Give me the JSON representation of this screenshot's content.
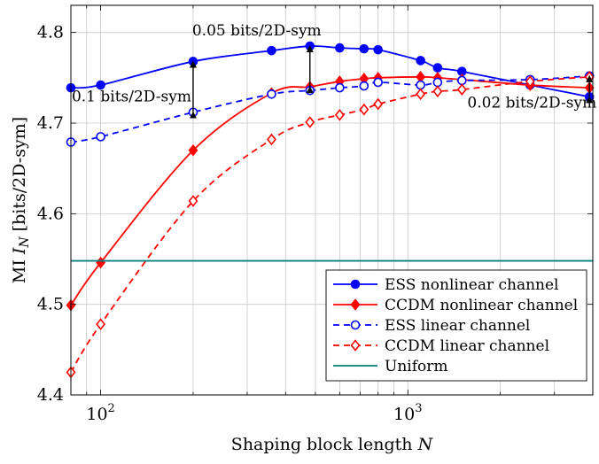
{
  "chart_data": {
    "type": "line",
    "xlabel": "Shaping block length N",
    "ylabel": "MI I_N [bits/2D-sym]",
    "xscale": "log",
    "xlim": [
      80,
      4000
    ],
    "ylim": [
      4.4,
      4.83
    ],
    "grid": true,
    "legend_position": "bottom-right",
    "x_ticks": [
      {
        "value": 100,
        "mantissa": "10",
        "exponent": "2"
      },
      {
        "value": 1000,
        "mantissa": "10",
        "exponent": "3"
      }
    ],
    "y_ticks": [
      "4.4",
      "4.5",
      "4.6",
      "4.7",
      "4.8"
    ],
    "series": [
      {
        "name": "ESS nonlinear channel",
        "color": "#0000ff",
        "dash": "solid",
        "marker": "circle",
        "filled": true,
        "points": [
          [
            80,
            4.739
          ],
          [
            100,
            4.742
          ],
          [
            200,
            4.768
          ],
          [
            360,
            4.78
          ],
          [
            480,
            4.785
          ],
          [
            600,
            4.783
          ],
          [
            720,
            4.782
          ],
          [
            800,
            4.781
          ],
          [
            1100,
            4.769
          ],
          [
            1250,
            4.761
          ],
          [
            1500,
            4.757
          ],
          [
            2500,
            4.742
          ],
          [
            3900,
            4.729
          ]
        ]
      },
      {
        "name": "CCDM nonlinear channel",
        "color": "#ff0000",
        "dash": "solid",
        "marker": "diamond",
        "filled": true,
        "points": [
          [
            80,
            4.499
          ],
          [
            100,
            4.546
          ],
          [
            200,
            4.67
          ],
          [
            360,
            4.733
          ],
          [
            480,
            4.74
          ],
          [
            600,
            4.746
          ],
          [
            720,
            4.749
          ],
          [
            800,
            4.75
          ],
          [
            1100,
            4.751
          ],
          [
            1250,
            4.75
          ],
          [
            1500,
            4.748
          ],
          [
            2500,
            4.742
          ],
          [
            3900,
            4.739
          ]
        ]
      },
      {
        "name": "ESS linear channel",
        "color": "#0000ff",
        "dash": "dashed",
        "marker": "circle",
        "filled": false,
        "points": [
          [
            80,
            4.679
          ],
          [
            100,
            4.685
          ],
          [
            200,
            4.712
          ],
          [
            360,
            4.732
          ],
          [
            480,
            4.736
          ],
          [
            600,
            4.739
          ],
          [
            720,
            4.741
          ],
          [
            800,
            4.745
          ],
          [
            1100,
            4.742
          ],
          [
            1250,
            4.745
          ],
          [
            1500,
            4.747
          ],
          [
            2500,
            4.748
          ],
          [
            3900,
            4.752
          ]
        ]
      },
      {
        "name": "CCDM linear channel",
        "color": "#ff0000",
        "dash": "dashed",
        "marker": "diamond",
        "filled": false,
        "points": [
          [
            80,
            4.425
          ],
          [
            100,
            4.478
          ],
          [
            200,
            4.614
          ],
          [
            360,
            4.682
          ],
          [
            480,
            4.701
          ],
          [
            600,
            4.709
          ],
          [
            720,
            4.715
          ],
          [
            800,
            4.721
          ],
          [
            1100,
            4.732
          ],
          [
            1250,
            4.735
          ],
          [
            1500,
            4.737
          ],
          [
            2500,
            4.746
          ],
          [
            3900,
            4.751
          ]
        ]
      },
      {
        "name": "Uniform",
        "color": "#008080",
        "dash": "solid",
        "marker": "none",
        "filled": false,
        "points": [
          [
            80,
            4.548
          ],
          [
            4000,
            4.548
          ]
        ]
      }
    ],
    "annotations": [
      {
        "text": "0.05 bits/2D-sym",
        "x": 480,
        "y_from": 4.74,
        "y_to": 4.785
      },
      {
        "text": "0.1 bits/2D-sym",
        "x": 200,
        "y_from": 4.712,
        "y_to": 4.768
      },
      {
        "text": "0.02 bits/2D-sym",
        "x": 3900,
        "y_from": 4.729,
        "y_to": 4.752
      }
    ]
  }
}
